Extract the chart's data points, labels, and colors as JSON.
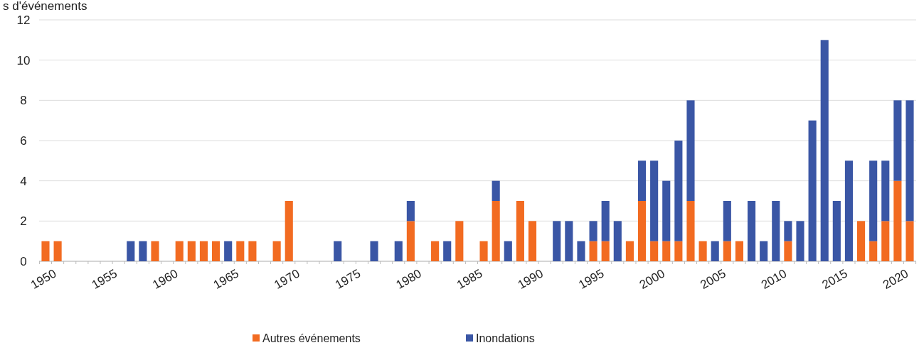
{
  "chart_data": {
    "type": "bar",
    "stacked": true,
    "ylabel": "s d'événements",
    "categories": [
      "1950",
      null,
      null,
      null,
      null,
      "1955",
      null,
      null,
      null,
      null,
      "1960",
      null,
      null,
      null,
      null,
      "1965",
      null,
      null,
      null,
      null,
      "1970",
      null,
      null,
      null,
      null,
      "1975",
      null,
      null,
      null,
      null,
      "1980",
      null,
      null,
      null,
      null,
      "1985",
      null,
      null,
      null,
      null,
      "1990",
      null,
      null,
      null,
      null,
      "1995",
      null,
      null,
      null,
      null,
      "2000",
      null,
      null,
      null,
      null,
      "2005",
      null,
      null,
      null,
      null,
      "2010",
      null,
      null,
      null,
      null,
      "2015",
      null,
      null,
      null,
      null,
      "2020",
      null
    ],
    "series": [
      {
        "name": "Autres événements",
        "color": "#f26b21",
        "values": [
          1,
          1,
          0,
          0,
          0,
          0,
          0,
          0,
          0,
          1,
          0,
          1,
          1,
          1,
          1,
          0,
          1,
          1,
          0,
          1,
          3,
          0,
          0,
          0,
          0,
          0,
          0,
          0,
          0,
          0,
          2,
          0,
          1,
          0,
          2,
          0,
          1,
          3,
          0,
          3,
          2,
          0,
          0,
          0,
          0,
          1,
          1,
          0,
          1,
          3,
          1,
          1,
          1,
          3,
          1,
          0,
          1,
          1,
          0,
          0,
          0,
          1,
          0,
          0,
          0,
          0,
          0,
          2,
          1,
          2,
          4,
          2
        ]
      },
      {
        "name": "Inondations",
        "color": "#3a56a5",
        "values": [
          0,
          0,
          0,
          0,
          0,
          0,
          0,
          1,
          1,
          0,
          0,
          0,
          0,
          0,
          0,
          1,
          0,
          0,
          0,
          0,
          0,
          0,
          0,
          0,
          1,
          0,
          0,
          1,
          0,
          1,
          1,
          0,
          0,
          1,
          0,
          0,
          0,
          1,
          1,
          0,
          0,
          0,
          2,
          2,
          1,
          1,
          2,
          2,
          0,
          2,
          4,
          3,
          5,
          5,
          0,
          1,
          2,
          0,
          3,
          1,
          3,
          1,
          2,
          7,
          11,
          3,
          5,
          0,
          4,
          3,
          4,
          6
        ]
      }
    ],
    "ylim": [
      0,
      12
    ],
    "yticks": [
      0,
      2,
      4,
      6,
      8,
      10,
      12
    ],
    "grid": "y",
    "legend": "bottom"
  }
}
